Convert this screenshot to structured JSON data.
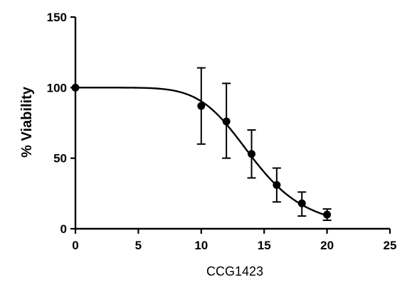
{
  "chart_data": {
    "type": "scatter",
    "title": "",
    "xlabel": "CCG1423",
    "ylabel": "% Viability",
    "xlim": [
      0,
      25
    ],
    "ylim": [
      0,
      150
    ],
    "xticks": [
      0,
      5,
      10,
      15,
      20,
      25
    ],
    "yticks": [
      0,
      50,
      100,
      150
    ],
    "grid": false,
    "legend": "none",
    "series": [
      {
        "x": [
          0,
          10,
          12,
          14,
          16,
          18,
          20
        ],
        "y": [
          100,
          87,
          76,
          53,
          31,
          18,
          10
        ],
        "err_low": [
          100,
          60,
          50,
          36,
          19,
          9,
          6
        ],
        "err_high": [
          100,
          114,
          103,
          70,
          43,
          26,
          14
        ]
      }
    ],
    "fit": {
      "model": "sigmoidal dose-response",
      "top": 100,
      "bottom": 0,
      "ec50": 14.1,
      "hill": 6.5
    }
  }
}
